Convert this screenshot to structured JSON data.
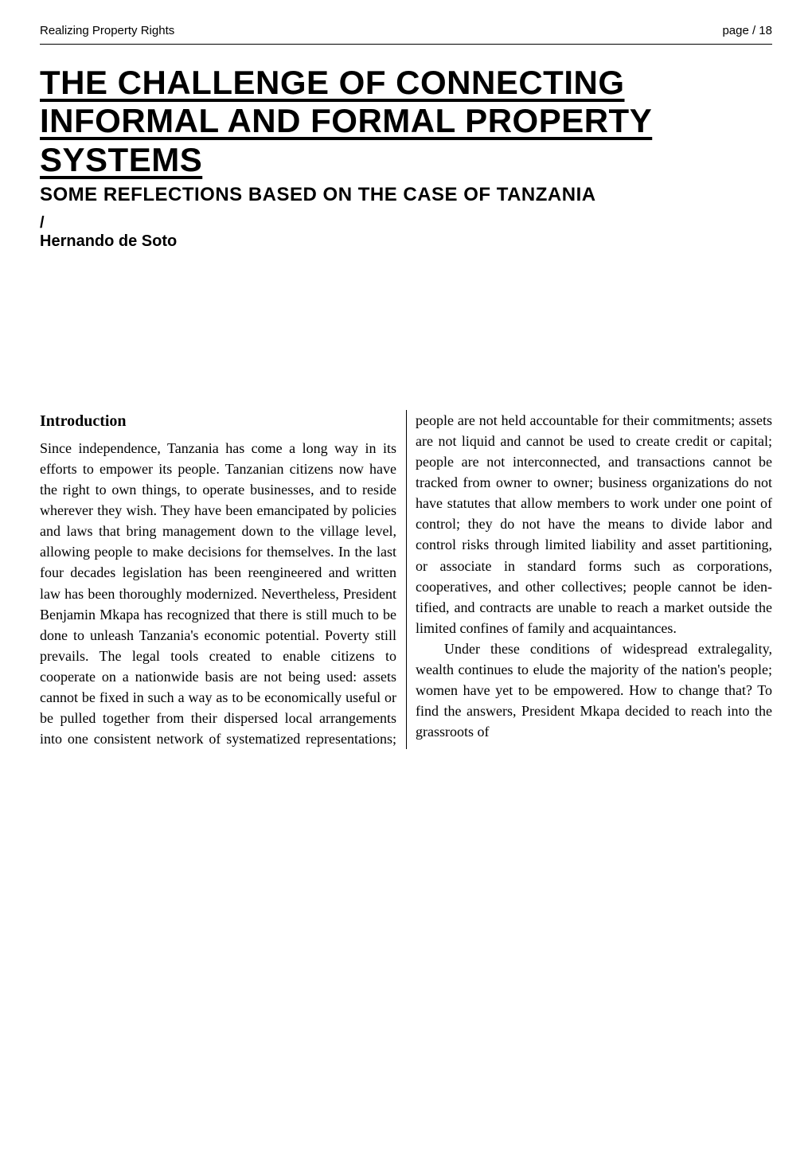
{
  "header": {
    "left": "Realizing Property Rights",
    "right": "page / 18"
  },
  "title": "THE CHALLENGE OF CONNECTING INFORMAL AND FORMAL PROPERTY SYSTEMS",
  "subtitle": "SOME REFLECTIONS BASED ON THE CASE OF TANZANIA",
  "author_slash": "/",
  "author": "Hernando de Soto",
  "section_heading": "Introduction",
  "para1": "Since independence, Tanzania has come a long way in its efforts to empower its people. Tanzanian citizens now have the right to own things, to operate business­es, and to reside wherever they wish. They have been emancipated by policies and laws that bring management down to the village level, allowing people to make deci­sions for themselves. In the last four dec­ades legislation has been reengineered and written law has been thoroughly mod­ernized. Nevertheless, President Benjamin Mkapa has recognized that there is still much to be done to unleash Tanzania's economic potential. Poverty still prevails. The legal tools created to enable citizens to cooperate on a nationwide basis are not being used: assets cannot be fixed in such a way as to be economically useful or be pulled together from their dispersed local arrangements into one consistent network of systematized representations; people are not held accountable for their commit­ments; assets are not liquid and cannot be used to create credit or capital; people are not interconnected, and transactions cannot be tracked from owner to owner; business organizations do not have stat­utes that allow members to work under one point of control; they do not have the means to divide labor and control risks through limited liability and asset par­titioning, or associate in standard forms such as corporations, cooperatives, and other collectives; people cannot be iden­tified, and contracts are unable to reach a market outside the limited confines of family and acquaintances.",
  "para2": "Under these conditions of widespread extralegality, wealth continues to elude the majority of the nation's people; women have yet to be empowered. How to change that? To find the answers, President Mkapa decided to reach into the grassroots of"
}
